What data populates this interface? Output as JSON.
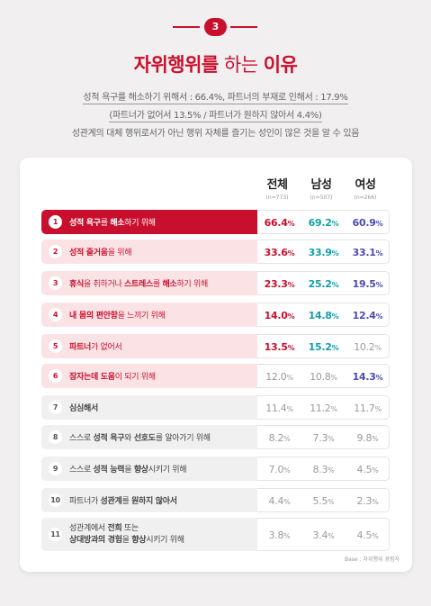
{
  "badge": "3",
  "title": {
    "part1": "자위행위를",
    "part2": " 하는 ",
    "part3": "이유"
  },
  "subtitles": [
    "성적 욕구를 해소하기 위해서 : 66.4%, 파트너의 부재로 인해서 : 17.9%",
    "(파트너가 없어서 13.5% / 파트너가 원하지 않아서 4.4%)",
    "성관계의 대체 행위로서가 아닌 행위 자체를 즐기는 성인이 많은 것을 알 수 있음"
  ],
  "columns": [
    {
      "label": "전체",
      "n": "(n=773)"
    },
    {
      "label": "남성",
      "n": "(n=507)"
    },
    {
      "label": "여성",
      "n": "(n=266)"
    }
  ],
  "percent_sign": "%",
  "rows": [
    {
      "no": "1",
      "style": "first",
      "segments": [
        [
          "성적 욕구",
          true
        ],
        [
          "를 ",
          false
        ],
        [
          "해소",
          true
        ],
        [
          "하기 위해",
          false
        ]
      ],
      "values": [
        "66.4",
        "69.2",
        "60.9"
      ],
      "tones": [
        "red",
        "teal",
        "blue"
      ]
    },
    {
      "no": "2",
      "style": "pink",
      "segments": [
        [
          "성적 즐거움",
          true
        ],
        [
          "을 위해",
          false
        ]
      ],
      "values": [
        "33.6",
        "33.9",
        "33.1"
      ],
      "tones": [
        "red",
        "teal",
        "blue"
      ]
    },
    {
      "no": "3",
      "style": "pink",
      "segments": [
        [
          "휴식",
          true
        ],
        [
          "을 취하거나 ",
          false
        ],
        [
          "스트레스",
          true
        ],
        [
          "를 ",
          false
        ],
        [
          "해소",
          true
        ],
        [
          "하기 위해",
          false
        ]
      ],
      "values": [
        "23.3",
        "25.2",
        "19.5"
      ],
      "tones": [
        "red",
        "teal",
        "blue"
      ]
    },
    {
      "no": "4",
      "style": "pink",
      "segments": [
        [
          "내 몸의 편안함",
          true
        ],
        [
          "을 느끼기 위해",
          false
        ]
      ],
      "values": [
        "14.0",
        "14.8",
        "12.4"
      ],
      "tones": [
        "red",
        "teal",
        "blue"
      ]
    },
    {
      "no": "5",
      "style": "pink",
      "segments": [
        [
          "파트너",
          true
        ],
        [
          "가 없어서",
          false
        ]
      ],
      "values": [
        "13.5",
        "15.2",
        "10.2"
      ],
      "tones": [
        "red",
        "teal",
        "grey"
      ]
    },
    {
      "no": "6",
      "style": "pink",
      "segments": [
        [
          "잠자는데 도움",
          true
        ],
        [
          "이 되기 위해",
          false
        ]
      ],
      "values": [
        "12.0",
        "10.8",
        "14.3"
      ],
      "tones": [
        "grey",
        "grey",
        "blue"
      ]
    },
    {
      "no": "7",
      "style": "gray",
      "segments": [
        [
          "심심해서",
          true
        ]
      ],
      "values": [
        "11.4",
        "11.2",
        "11.7"
      ],
      "tones": [
        "grey",
        "grey",
        "grey"
      ]
    },
    {
      "no": "8",
      "style": "gray",
      "segments": [
        [
          "스스로 ",
          false
        ],
        [
          "성적 욕구",
          true
        ],
        [
          "와 ",
          false
        ],
        [
          "선호도",
          true
        ],
        [
          "를 알아가기 위해",
          false
        ]
      ],
      "values": [
        "8.2",
        "7.3",
        "9.8"
      ],
      "tones": [
        "grey",
        "grey",
        "grey"
      ]
    },
    {
      "no": "9",
      "style": "gray",
      "segments": [
        [
          "스스로 ",
          false
        ],
        [
          "성적 능력",
          true
        ],
        [
          "을 ",
          false
        ],
        [
          "향상",
          true
        ],
        [
          "시키기 위해",
          false
        ]
      ],
      "values": [
        "7.0",
        "8.3",
        "4.5"
      ],
      "tones": [
        "grey",
        "grey",
        "grey"
      ]
    },
    {
      "no": "10",
      "style": "gray",
      "segments": [
        [
          "파트너가 ",
          false
        ],
        [
          "성관계",
          true
        ],
        [
          "를 ",
          false
        ],
        [
          "원하지 않아서",
          true
        ]
      ],
      "values": [
        "4.4",
        "5.5",
        "2.3"
      ],
      "tones": [
        "grey",
        "grey",
        "grey"
      ]
    },
    {
      "no": "11",
      "style": "gray tall",
      "segments": [
        [
          "성관계에서 ",
          false
        ],
        [
          "전희",
          true
        ],
        [
          " 또는",
          false
        ],
        [
          "\n",
          false
        ],
        [
          "상대방과의 경험",
          true
        ],
        [
          "을 ",
          false
        ],
        [
          "향상",
          true
        ],
        [
          "시키기 위해",
          false
        ]
      ],
      "values": [
        "3.8",
        "3.4",
        "4.5"
      ],
      "tones": [
        "grey",
        "grey",
        "grey"
      ]
    }
  ],
  "base_note": "Base : 자위행위 경험자",
  "colors": {
    "accent": "#c8102e",
    "teal": "#14a0a8",
    "blue": "#4b4cb0",
    "pink": "#fbe3e5",
    "grey": "#9a9a9a"
  },
  "chart_data": {
    "type": "table",
    "title": "자위행위를 하는 이유",
    "columns": [
      "전체",
      "남성",
      "여성"
    ],
    "categories": [
      "성적 욕구를 해소하기 위해",
      "성적 즐거움을 위해",
      "휴식을 취하거나 스트레스를 해소하기 위해",
      "내 몸의 편안함을 느끼기 위해",
      "파트너가 없어서",
      "잠자는데 도움이 되기 위해",
      "심심해서",
      "스스로 성적 욕구와 선호도를 알아가기 위해",
      "스스로 성적 능력을 향상시키기 위해",
      "파트너가 성관계를 원하지 않아서",
      "성관계에서 전희 또는 상대방과의 경험을 향상시키기 위해"
    ],
    "series": [
      {
        "name": "전체",
        "values": [
          66.4,
          33.6,
          23.3,
          14.0,
          13.5,
          12.0,
          11.4,
          8.2,
          7.0,
          4.4,
          3.8
        ]
      },
      {
        "name": "남성",
        "values": [
          69.2,
          33.9,
          25.2,
          14.8,
          15.2,
          10.8,
          11.2,
          7.3,
          8.3,
          5.5,
          3.4
        ]
      },
      {
        "name": "여성",
        "values": [
          60.9,
          33.1,
          19.5,
          12.4,
          10.2,
          14.3,
          11.7,
          9.8,
          4.5,
          2.3,
          4.5
        ]
      }
    ]
  }
}
